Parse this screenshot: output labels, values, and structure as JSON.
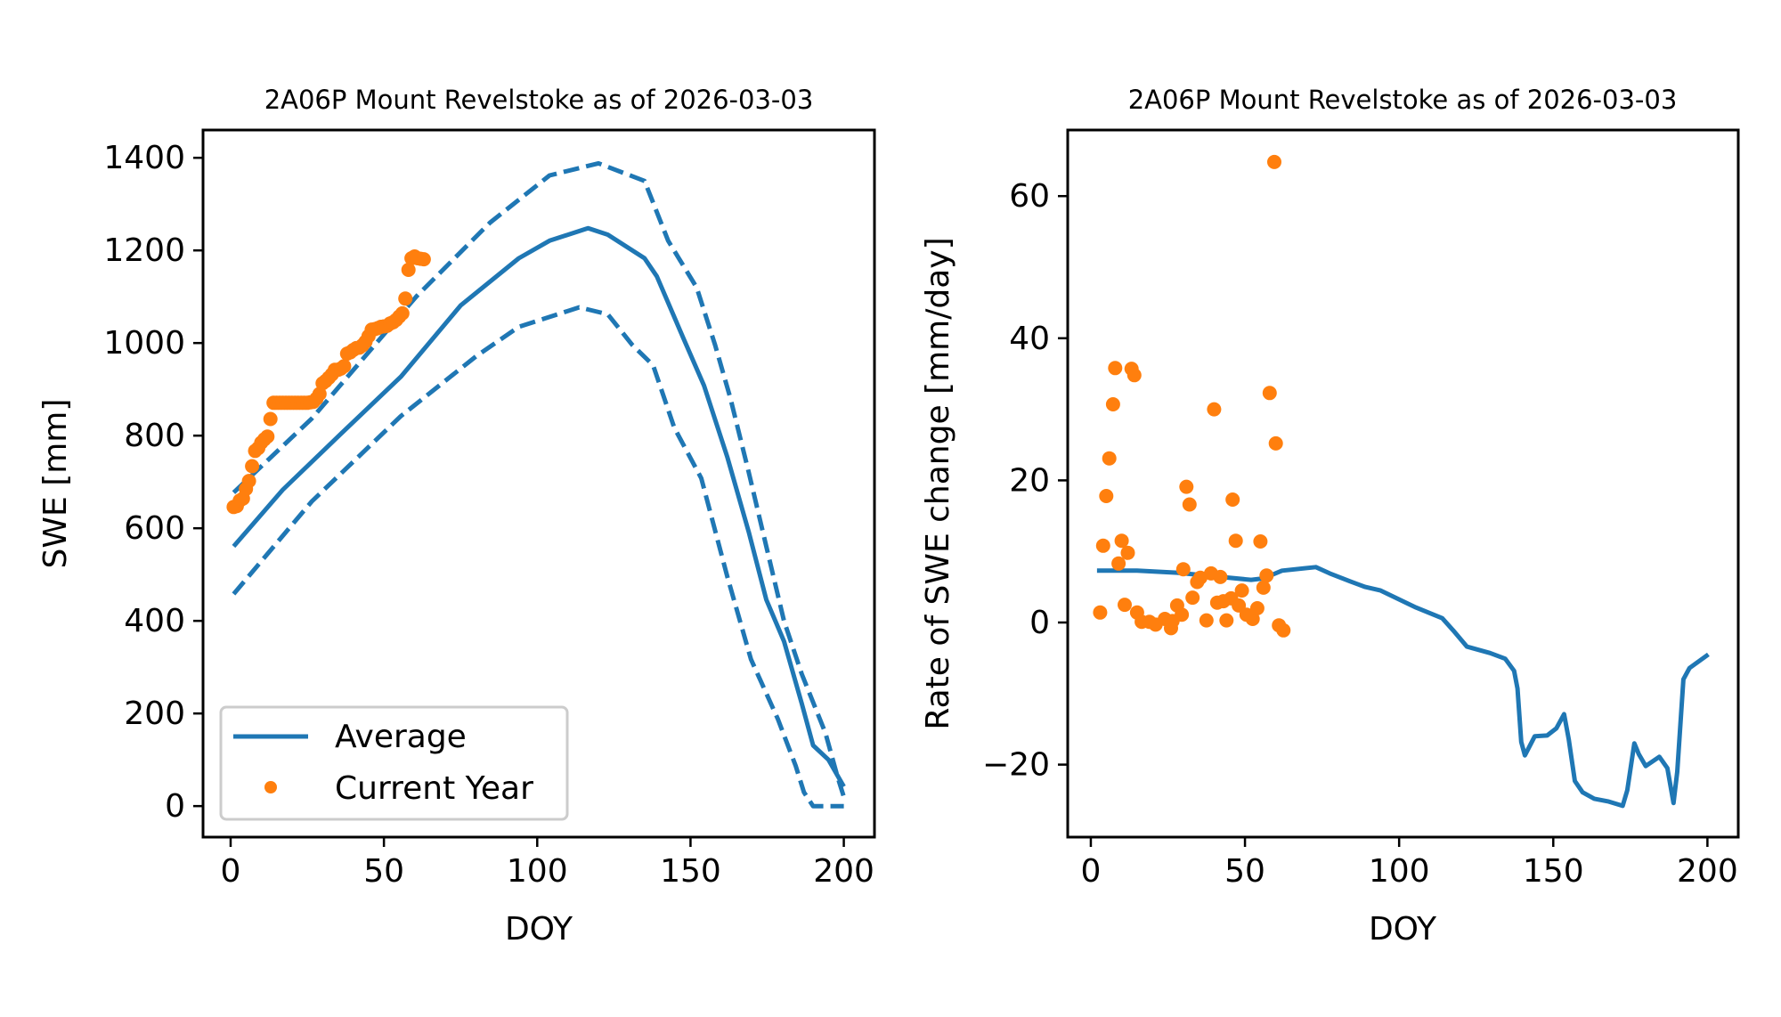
{
  "colors": {
    "average": "#1f77b4",
    "current_year": "#ff7f0e",
    "axes": "#000000",
    "legend_border": "#cccccc",
    "background": "#ffffff"
  },
  "chart_data": [
    {
      "id": "swe",
      "type": "line",
      "title": "2A06P Mount Revelstoke as of 2026-03-03",
      "xlabel": "DOY",
      "ylabel": "SWE [mm]",
      "xlim": [
        -9,
        210
      ],
      "ylim": [
        -67,
        1460
      ],
      "xticks": [
        0,
        50,
        100,
        150,
        200
      ],
      "yticks": [
        0,
        200,
        400,
        600,
        800,
        1000,
        1200,
        1400
      ],
      "xtick_labels": [
        "0",
        "50",
        "100",
        "150",
        "200"
      ],
      "ytick_labels": [
        "0",
        "200",
        "400",
        "600",
        "800",
        "1000",
        "1200",
        "1400"
      ],
      "grid": false,
      "legend": {
        "position": "lower-left",
        "entries": [
          {
            "label": "Average",
            "marker": "line",
            "series": "average"
          },
          {
            "label": "Current Year",
            "marker": "dot",
            "series": "current_year"
          }
        ]
      },
      "series": [
        {
          "name": "Average",
          "key": "average",
          "style": "solid",
          "x": [
            1,
            17,
            36,
            55.5,
            75,
            94,
            104,
            116.6,
            123,
            135,
            139,
            147.7,
            154.4,
            162,
            169,
            174.7,
            180.5,
            186.3,
            190,
            195,
            200
          ],
          "y": [
            561,
            683,
            804,
            927,
            1081,
            1183,
            1221,
            1248,
            1234,
            1183,
            1144,
            1010,
            908,
            754,
            592,
            446,
            356,
            221,
            131,
            100,
            42
          ]
        },
        {
          "name": "Upper bound",
          "key": "upper",
          "style": "dashed",
          "x": [
            1,
            26.5,
            60.5,
            84.6,
            104,
            120,
            135,
            142.7,
            152,
            158,
            163,
            169,
            174.7,
            180.5,
            186.3,
            194,
            198,
            200
          ],
          "y": [
            677,
            837,
            1100,
            1260,
            1362,
            1388,
            1350,
            1221,
            1120,
            996,
            881,
            721,
            561,
            400,
            285,
            158,
            62,
            20
          ]
        },
        {
          "name": "Lower bound",
          "key": "lower",
          "style": "dashed",
          "x": [
            1,
            26.5,
            55.5,
            80,
            94,
            113.7,
            123,
            131,
            137.8,
            144.7,
            153.5,
            162,
            169.7,
            178.5,
            184.3,
            187,
            190,
            200
          ],
          "y": [
            458,
            658,
            842,
            971,
            1035,
            1077,
            1062,
            996,
            952,
            817,
            708,
            496,
            317,
            188,
            87,
            30,
            0,
            0
          ]
        },
        {
          "name": "Current Year",
          "key": "current_year",
          "style": "scatter",
          "x": [
            1,
            2,
            3,
            4,
            5,
            6,
            7,
            8,
            9,
            10,
            11,
            12,
            13,
            14,
            15,
            16,
            17,
            18,
            19,
            20,
            21,
            22,
            23,
            24,
            25,
            26,
            27,
            28,
            29,
            30,
            31,
            32,
            33,
            34,
            35,
            36,
            37,
            38,
            39,
            40,
            41,
            42,
            43,
            44,
            45,
            46,
            47,
            48,
            49,
            50,
            51,
            52,
            53,
            54,
            55,
            56,
            57,
            58,
            59,
            60,
            61,
            62,
            63
          ],
          "y": [
            646,
            648,
            660,
            664,
            685,
            702,
            734,
            767,
            773,
            785,
            792,
            798,
            836,
            871,
            871,
            871,
            871,
            871,
            871,
            871,
            871,
            871,
            871,
            871,
            871,
            872,
            873,
            880,
            890,
            913,
            918,
            925,
            932,
            942,
            942,
            945,
            950,
            977,
            980,
            985,
            989,
            990,
            995,
            1003,
            1015,
            1029,
            1030,
            1032,
            1035,
            1036,
            1037,
            1042,
            1045,
            1050,
            1057,
            1064,
            1096,
            1158,
            1183,
            1187,
            1183,
            1182,
            1181
          ]
        }
      ]
    },
    {
      "id": "rate",
      "type": "line",
      "title": "2A06P Mount Revelstoke as of 2026-03-03",
      "xlabel": "DOY",
      "ylabel": "Rate of SWE change [mm/day]",
      "xlim": [
        -7.5,
        210
      ],
      "ylim": [
        -30.2,
        69.3
      ],
      "xticks": [
        0,
        50,
        100,
        150,
        200
      ],
      "yticks": [
        -20,
        0,
        20,
        40,
        60
      ],
      "xtick_labels": [
        "0",
        "50",
        "100",
        "150",
        "200"
      ],
      "ytick_labels": [
        "−20",
        "0",
        "20",
        "40",
        "60"
      ],
      "grid": false,
      "series": [
        {
          "name": "Average",
          "key": "average",
          "style": "solid",
          "x": [
            2,
            15,
            28,
            40,
            52,
            56,
            62,
            73,
            77.5,
            84,
            89,
            94,
            105.5,
            114,
            117.5,
            122,
            129.5,
            134.4,
            137.3,
            138.4,
            139.6,
            140.8,
            144,
            148,
            151,
            153.5,
            155,
            157,
            159.5,
            163.3,
            168,
            172.5,
            174,
            176.3,
            177.7,
            180,
            184.4,
            187,
            189,
            190.2,
            192.2,
            194.2,
            200.3
          ],
          "y": [
            7.3,
            7.3,
            7.0,
            6.5,
            6.0,
            6.2,
            7.3,
            7.8,
            6.9,
            5.8,
            5.0,
            4.5,
            2.1,
            0.6,
            -1.1,
            -3.4,
            -4.3,
            -5.1,
            -6.8,
            -9.3,
            -16.8,
            -18.7,
            -16.0,
            -15.9,
            -14.9,
            -12.9,
            -16.4,
            -22.3,
            -23.9,
            -24.8,
            -25.2,
            -25.8,
            -23.6,
            -17.0,
            -18.5,
            -20.2,
            -18.9,
            -20.5,
            -25.4,
            -21.0,
            -8.0,
            -6.4,
            -4.5
          ]
        },
        {
          "name": "Current Year",
          "key": "current_year",
          "style": "scatter",
          "x": [
            3,
            4,
            5,
            6,
            7.2,
            7.9,
            9,
            10,
            11,
            12,
            13.2,
            14.1,
            15,
            16.5,
            19,
            21,
            24,
            26,
            26.5,
            28,
            29.5,
            30,
            31,
            32,
            33,
            34.5,
            35.5,
            37.5,
            39,
            40,
            41,
            42,
            43,
            44,
            45.5,
            46,
            47,
            48,
            49,
            50.5,
            52.5,
            54,
            55,
            56,
            57,
            58,
            60,
            59.5,
            61,
            62.5
          ],
          "y": [
            1.4,
            10.8,
            17.8,
            23.1,
            30.7,
            35.8,
            8.3,
            11.5,
            2.5,
            9.8,
            35.7,
            34.8,
            1.4,
            0.1,
            0.1,
            -0.3,
            0.5,
            -0.8,
            0.2,
            2.4,
            1.1,
            7.5,
            19.1,
            16.6,
            3.5,
            5.7,
            6.3,
            0.3,
            6.9,
            30.0,
            2.8,
            6.4,
            3.0,
            0.3,
            3.4,
            17.3,
            11.5,
            2.4,
            4.5,
            1.1,
            0.5,
            2.0,
            11.4,
            4.9,
            6.6,
            32.3,
            25.2,
            64.8,
            -0.4,
            -1.1
          ]
        }
      ]
    }
  ]
}
